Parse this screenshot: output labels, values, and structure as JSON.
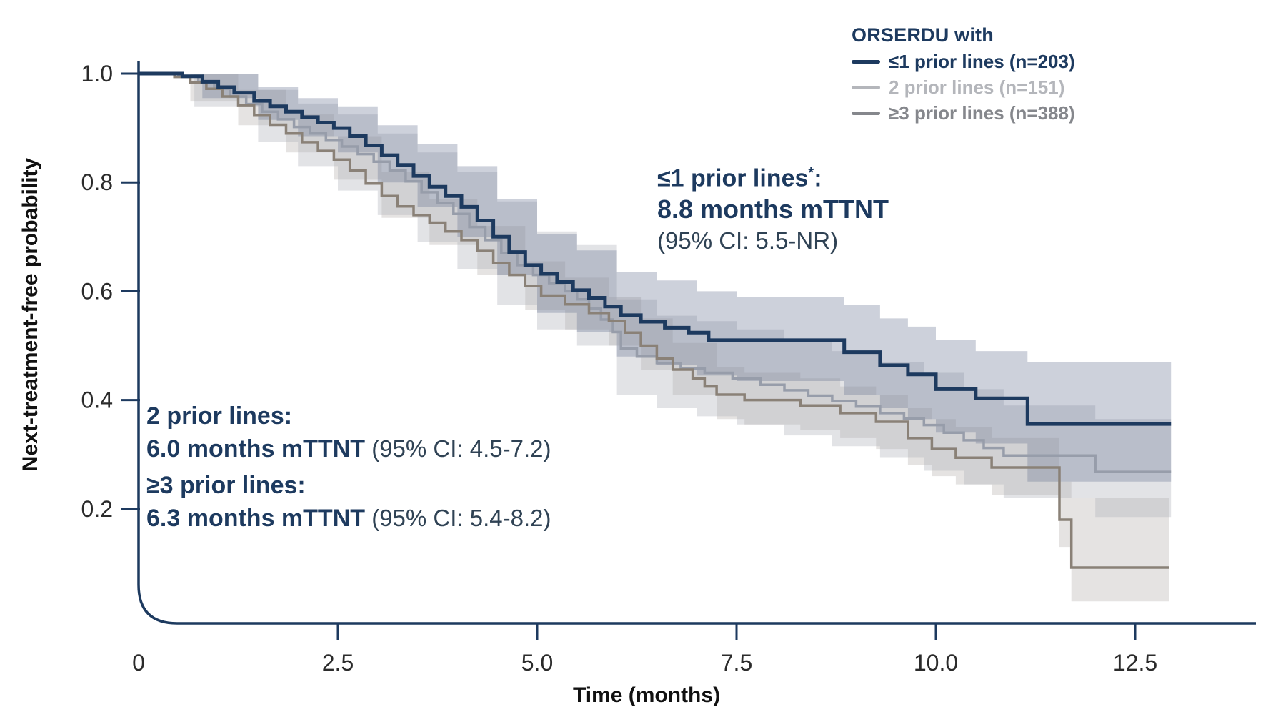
{
  "colors": {
    "navy": "#1d3a5f",
    "gray_line": "#979daa",
    "taupe_line": "#8a8177",
    "legend_gray": "#b4b6bb",
    "legend_dark_gray": "#85878c",
    "ci_text": "#2f4254",
    "tick_text": "#2b2b2b",
    "axis_title_text": "#111111",
    "navy_band": "rgba(101,111,144,0.32)",
    "gray_band": "rgba(173,176,184,0.35)",
    "taupe_band": "rgba(168,163,158,0.30)"
  },
  "legend": {
    "title": "ORSERDU with",
    "items": [
      {
        "label": "≤1 prior lines (n=203)",
        "color_key": "navy"
      },
      {
        "label": "2 prior lines (n=151)",
        "color_key": "legend_gray"
      },
      {
        "label": "≥3 prior lines (n=388)",
        "color_key": "legend_dark_gray"
      }
    ]
  },
  "callout_top": {
    "line1_main": "≤1 prior lines",
    "line1_sup": "*",
    "line1_tail": ":",
    "line2": "8.8 months mTTNT",
    "line3": "(95% CI: 5.5-NR)"
  },
  "callout_bottom": {
    "group1_label": "2 prior lines:",
    "group1_value": "6.0 months mTTNT",
    "group1_ci": " (95% CI: 4.5-7.2)",
    "group2_label": "≥3 prior lines:",
    "group2_value": "6.3 months mTTNT",
    "group2_ci": " (95% CI: 5.4-8.2)"
  },
  "chart_data": {
    "type": "line",
    "subtype": "kaplan-meier-step-with-ci-bands",
    "title": "",
    "xlabel": "Time (months)",
    "ylabel": "Next-treatment-free probability",
    "xlim": [
      0,
      13.2
    ],
    "ylim": [
      0,
      1.0
    ],
    "xticks": [
      {
        "v": 0,
        "label": "0"
      },
      {
        "v": 2.5,
        "label": "2.5"
      },
      {
        "v": 5,
        "label": "5.0"
      },
      {
        "v": 7.5,
        "label": "7.5"
      },
      {
        "v": 10,
        "label": "10.0"
      },
      {
        "v": 12.5,
        "label": "12.5"
      }
    ],
    "yticks": [
      {
        "v": 1.0,
        "label": "1.0"
      },
      {
        "v": 0.8,
        "label": "0.8"
      },
      {
        "v": 0.6,
        "label": "0.6"
      },
      {
        "v": 0.4,
        "label": "0.4"
      },
      {
        "v": 0.2,
        "label": "0.2"
      }
    ],
    "grid": false,
    "legend_position": "top-right",
    "series": [
      {
        "name": "≤1 prior lines (n=203)",
        "median_mTTNT_months": 8.8,
        "ci95": "5.5-NR",
        "color_key": "navy",
        "band_key": "navy_band",
        "line_width": 5,
        "points": [
          [
            0,
            1.0
          ],
          [
            0.55,
            0.995
          ],
          [
            0.8,
            0.985
          ],
          [
            1.0,
            0.975
          ],
          [
            1.2,
            0.965
          ],
          [
            1.45,
            0.95
          ],
          [
            1.65,
            0.94
          ],
          [
            1.85,
            0.93
          ],
          [
            2.05,
            0.92
          ],
          [
            2.25,
            0.91
          ],
          [
            2.45,
            0.9
          ],
          [
            2.65,
            0.885
          ],
          [
            2.85,
            0.868
          ],
          [
            3.05,
            0.85
          ],
          [
            3.25,
            0.832
          ],
          [
            3.45,
            0.812
          ],
          [
            3.65,
            0.792
          ],
          [
            3.85,
            0.775
          ],
          [
            4.05,
            0.755
          ],
          [
            4.25,
            0.73
          ],
          [
            4.45,
            0.7
          ],
          [
            4.65,
            0.672
          ],
          [
            4.85,
            0.648
          ],
          [
            5.05,
            0.632
          ],
          [
            5.25,
            0.617
          ],
          [
            5.45,
            0.602
          ],
          [
            5.65,
            0.588
          ],
          [
            5.85,
            0.572
          ],
          [
            6.05,
            0.556
          ],
          [
            6.3,
            0.544
          ],
          [
            6.6,
            0.533
          ],
          [
            6.9,
            0.524
          ],
          [
            7.15,
            0.51
          ],
          [
            8.85,
            0.488
          ],
          [
            9.3,
            0.464
          ],
          [
            9.65,
            0.447
          ],
          [
            10.0,
            0.42
          ],
          [
            10.5,
            0.403
          ],
          [
            11.15,
            0.356
          ],
          [
            12.95,
            0.356
          ]
        ],
        "band": [
          [
            0,
            1.0,
            1.0
          ],
          [
            0.8,
            0.955,
            1.0
          ],
          [
            1.5,
            0.915,
            0.975
          ],
          [
            2.0,
            0.885,
            0.955
          ],
          [
            2.5,
            0.855,
            0.94
          ],
          [
            3.0,
            0.8,
            0.905
          ],
          [
            3.5,
            0.755,
            0.87
          ],
          [
            4.0,
            0.7,
            0.83
          ],
          [
            4.5,
            0.63,
            0.77
          ],
          [
            5.0,
            0.56,
            0.705
          ],
          [
            5.5,
            0.525,
            0.675
          ],
          [
            6.0,
            0.48,
            0.635
          ],
          [
            6.5,
            0.465,
            0.62
          ],
          [
            7.0,
            0.445,
            0.6
          ],
          [
            7.5,
            0.435,
            0.59
          ],
          [
            8.85,
            0.41,
            0.575
          ],
          [
            9.3,
            0.385,
            0.55
          ],
          [
            9.65,
            0.365,
            0.535
          ],
          [
            10.0,
            0.34,
            0.51
          ],
          [
            10.5,
            0.32,
            0.49
          ],
          [
            11.15,
            0.25,
            0.47
          ],
          [
            12.95,
            0.25,
            0.47
          ]
        ]
      },
      {
        "name": "2 prior lines (n=151)",
        "median_mTTNT_months": 6.0,
        "ci95": "4.5-7.2",
        "color_key": "gray_line",
        "band_key": "gray_band",
        "line_width": 3.5,
        "points": [
          [
            0,
            1.0
          ],
          [
            0.5,
            0.995
          ],
          [
            0.75,
            0.985
          ],
          [
            0.95,
            0.972
          ],
          [
            1.15,
            0.958
          ],
          [
            1.35,
            0.944
          ],
          [
            1.55,
            0.93
          ],
          [
            1.75,
            0.916
          ],
          [
            1.95,
            0.902
          ],
          [
            2.15,
            0.89
          ],
          [
            2.35,
            0.878
          ],
          [
            2.55,
            0.866
          ],
          [
            2.75,
            0.852
          ],
          [
            2.95,
            0.838
          ],
          [
            3.15,
            0.822
          ],
          [
            3.35,
            0.802
          ],
          [
            3.55,
            0.782
          ],
          [
            3.75,
            0.762
          ],
          [
            3.95,
            0.742
          ],
          [
            4.15,
            0.718
          ],
          [
            4.35,
            0.694
          ],
          [
            4.55,
            0.67
          ],
          [
            4.75,
            0.648
          ],
          [
            4.95,
            0.63
          ],
          [
            5.15,
            0.615
          ],
          [
            5.35,
            0.6
          ],
          [
            5.5,
            0.585
          ],
          [
            5.65,
            0.568
          ],
          [
            5.8,
            0.548
          ],
          [
            5.95,
            0.525
          ],
          [
            6.05,
            0.495
          ],
          [
            6.25,
            0.48
          ],
          [
            6.5,
            0.468
          ],
          [
            6.8,
            0.458
          ],
          [
            7.1,
            0.45
          ],
          [
            7.45,
            0.44
          ],
          [
            7.8,
            0.428
          ],
          [
            8.1,
            0.418
          ],
          [
            8.4,
            0.408
          ],
          [
            8.7,
            0.398
          ],
          [
            9.0,
            0.388
          ],
          [
            9.3,
            0.376
          ],
          [
            9.6,
            0.366
          ],
          [
            9.85,
            0.354
          ],
          [
            10.1,
            0.34
          ],
          [
            10.35,
            0.326
          ],
          [
            10.6,
            0.312
          ],
          [
            10.85,
            0.298
          ],
          [
            12.0,
            0.268
          ],
          [
            12.95,
            0.268
          ]
        ],
        "band": [
          [
            0,
            1.0,
            1.0
          ],
          [
            0.7,
            0.94,
            1.0
          ],
          [
            1.5,
            0.875,
            0.97
          ],
          [
            2.0,
            0.83,
            0.945
          ],
          [
            2.5,
            0.785,
            0.925
          ],
          [
            3.0,
            0.74,
            0.89
          ],
          [
            3.5,
            0.69,
            0.855
          ],
          [
            4.0,
            0.64,
            0.82
          ],
          [
            4.5,
            0.575,
            0.765
          ],
          [
            5.0,
            0.53,
            0.71
          ],
          [
            5.5,
            0.5,
            0.685
          ],
          [
            6.0,
            0.41,
            0.585
          ],
          [
            6.5,
            0.385,
            0.555
          ],
          [
            7.0,
            0.37,
            0.545
          ],
          [
            7.5,
            0.355,
            0.53
          ],
          [
            8.1,
            0.335,
            0.51
          ],
          [
            8.7,
            0.315,
            0.49
          ],
          [
            9.3,
            0.295,
            0.47
          ],
          [
            9.85,
            0.27,
            0.45
          ],
          [
            10.35,
            0.245,
            0.42
          ],
          [
            10.85,
            0.22,
            0.39
          ],
          [
            12.0,
            0.185,
            0.365
          ],
          [
            12.95,
            0.185,
            0.365
          ]
        ]
      },
      {
        "name": "≥3 prior lines (n=388)",
        "median_mTTNT_months": 6.3,
        "ci95": "5.4-8.2",
        "color_key": "taupe_line",
        "band_key": "taupe_band",
        "line_width": 3.5,
        "points": [
          [
            0,
            1.0
          ],
          [
            0.45,
            0.994
          ],
          [
            0.65,
            0.984
          ],
          [
            0.85,
            0.972
          ],
          [
            1.05,
            0.958
          ],
          [
            1.25,
            0.942
          ],
          [
            1.45,
            0.924
          ],
          [
            1.65,
            0.906
          ],
          [
            1.85,
            0.89
          ],
          [
            2.05,
            0.874
          ],
          [
            2.25,
            0.858
          ],
          [
            2.45,
            0.842
          ],
          [
            2.65,
            0.822
          ],
          [
            2.85,
            0.798
          ],
          [
            3.05,
            0.775
          ],
          [
            3.25,
            0.756
          ],
          [
            3.45,
            0.74
          ],
          [
            3.65,
            0.726
          ],
          [
            3.85,
            0.71
          ],
          [
            4.05,
            0.694
          ],
          [
            4.25,
            0.674
          ],
          [
            4.45,
            0.652
          ],
          [
            4.65,
            0.63
          ],
          [
            4.85,
            0.61
          ],
          [
            5.05,
            0.592
          ],
          [
            5.35,
            0.576
          ],
          [
            5.65,
            0.56
          ],
          [
            5.9,
            0.545
          ],
          [
            6.1,
            0.524
          ],
          [
            6.3,
            0.5
          ],
          [
            6.5,
            0.476
          ],
          [
            6.7,
            0.456
          ],
          [
            6.95,
            0.44
          ],
          [
            7.1,
            0.425
          ],
          [
            7.25,
            0.41
          ],
          [
            7.6,
            0.4
          ],
          [
            8.3,
            0.39
          ],
          [
            8.8,
            0.376
          ],
          [
            9.25,
            0.36
          ],
          [
            9.65,
            0.33
          ],
          [
            9.95,
            0.31
          ],
          [
            10.25,
            0.294
          ],
          [
            10.7,
            0.276
          ],
          [
            11.55,
            0.18
          ],
          [
            11.7,
            0.092
          ],
          [
            12.93,
            0.092
          ]
        ],
        "band": [
          [
            0,
            1.0,
            1.0
          ],
          [
            0.65,
            0.95,
            1.0
          ],
          [
            1.25,
            0.905,
            0.97
          ],
          [
            1.85,
            0.855,
            0.925
          ],
          [
            2.45,
            0.805,
            0.885
          ],
          [
            3.05,
            0.735,
            0.82
          ],
          [
            3.65,
            0.685,
            0.77
          ],
          [
            4.25,
            0.63,
            0.72
          ],
          [
            4.85,
            0.565,
            0.655
          ],
          [
            5.35,
            0.53,
            0.625
          ],
          [
            5.9,
            0.5,
            0.59
          ],
          [
            6.3,
            0.455,
            0.55
          ],
          [
            6.7,
            0.41,
            0.505
          ],
          [
            7.25,
            0.365,
            0.46
          ],
          [
            7.6,
            0.355,
            0.45
          ],
          [
            8.3,
            0.345,
            0.44
          ],
          [
            8.8,
            0.33,
            0.425
          ],
          [
            9.25,
            0.31,
            0.41
          ],
          [
            9.65,
            0.28,
            0.385
          ],
          [
            9.95,
            0.26,
            0.365
          ],
          [
            10.25,
            0.245,
            0.35
          ],
          [
            10.7,
            0.225,
            0.33
          ],
          [
            11.55,
            0.13,
            0.25
          ],
          [
            11.7,
            0.03,
            0.22
          ],
          [
            12.93,
            0.03,
            0.22
          ]
        ]
      }
    ]
  }
}
